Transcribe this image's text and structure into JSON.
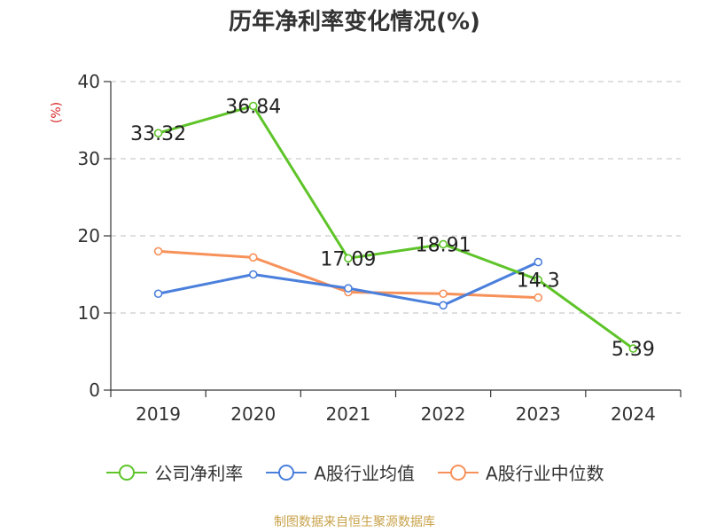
{
  "chart_data": {
    "type": "line",
    "title": "历年净利率变化情况(%)",
    "ylabel": "(%)",
    "categories": [
      "2019",
      "2020",
      "2021",
      "2022",
      "2023",
      "2024"
    ],
    "ylim": [
      0,
      40
    ],
    "yticks": [
      0,
      10,
      20,
      30,
      40
    ],
    "grid": true,
    "legend_position": "bottom",
    "series": [
      {
        "name": "公司净利率",
        "color": "#5ec429",
        "values": [
          33.32,
          36.84,
          17.09,
          18.91,
          14.3,
          5.39
        ],
        "labels": [
          "33.32",
          "36.84",
          "17.09",
          "18.91",
          "14.3",
          "5.39"
        ]
      },
      {
        "name": "A股行业均值",
        "color": "#4a7fdc",
        "values": [
          12.5,
          15.0,
          13.2,
          11.0,
          16.6,
          null
        ]
      },
      {
        "name": "A股行业中位数",
        "color": "#f7915a",
        "values": [
          18.0,
          17.2,
          12.7,
          12.5,
          12.0,
          null
        ]
      }
    ]
  },
  "footer": {
    "source": "制图数据来自恒生聚源数据库"
  }
}
